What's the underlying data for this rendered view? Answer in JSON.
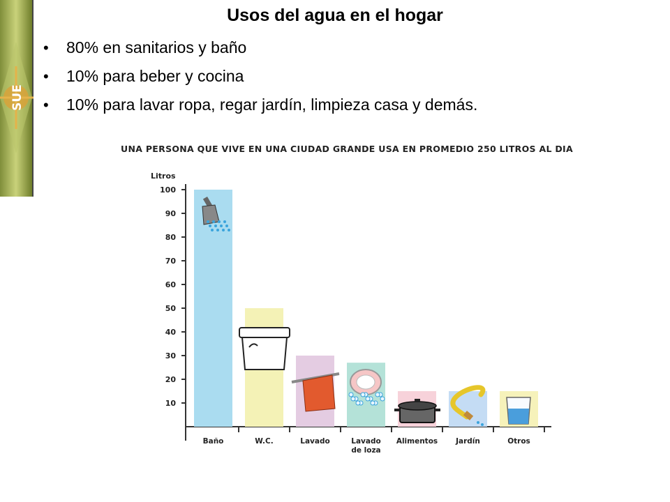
{
  "slide": {
    "title": "Usos del agua en el hogar",
    "bullets": [
      "80% en sanitarios y baño",
      "10% para beber y cocina",
      "10% para lavar ropa, regar jardín, limpieza casa y demás."
    ],
    "bullet_symbol": "•",
    "logo_text": "SUE"
  },
  "chart_data": {
    "type": "bar",
    "title": "UNA PERSONA QUE VIVE EN UNA CIUDAD GRANDE USA EN PROMEDIO 250 LITROS AL DIA",
    "ylabel": "Litros",
    "ylim": [
      0,
      100
    ],
    "yticks": [
      10,
      20,
      30,
      40,
      50,
      60,
      70,
      80,
      90,
      100
    ],
    "categories": [
      "Baño",
      "W.C.",
      "Lavado",
      "Lavado de loza",
      "Alimentos",
      "Jardín",
      "Otros"
    ],
    "category_lines": [
      [
        "Baño"
      ],
      [
        "W.C."
      ],
      [
        "Lavado"
      ],
      [
        "Lavado",
        "de loza"
      ],
      [
        "Alimentos"
      ],
      [
        "Jardín"
      ],
      [
        "Otros"
      ]
    ],
    "values": [
      100,
      50,
      30,
      27,
      15,
      15,
      15
    ],
    "bar_colors": [
      "#aadcf0",
      "#f4f2b6",
      "#e4cce2",
      "#b4e2d8",
      "#f7d2da",
      "#c4dcf4",
      "#f6f2ba"
    ],
    "icons": [
      "shower-icon",
      "toilet-tank-icon",
      "towel-icon",
      "dish-icon",
      "pot-icon",
      "hose-icon",
      "glass-icon"
    ],
    "grid": false
  }
}
